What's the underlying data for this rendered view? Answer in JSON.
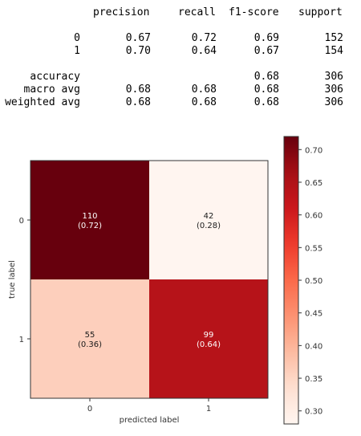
{
  "report": {
    "headers": [
      "precision",
      "recall",
      "f1-score",
      "support"
    ],
    "rows": [
      {
        "label": "0",
        "precision": "0.67",
        "recall": "0.72",
        "f1": "0.69",
        "support": "152"
      },
      {
        "label": "1",
        "precision": "0.70",
        "recall": "0.64",
        "f1": "0.67",
        "support": "154"
      },
      {
        "label": "accuracy",
        "precision": "",
        "recall": "",
        "f1": "0.68",
        "support": "306"
      },
      {
        "label": "macro avg",
        "precision": "0.68",
        "recall": "0.68",
        "f1": "0.68",
        "support": "306"
      },
      {
        "label": "weighted avg",
        "precision": "0.68",
        "recall": "0.68",
        "f1": "0.68",
        "support": "306"
      }
    ]
  },
  "chart_data": {
    "type": "heatmap",
    "xlabel": "predicted label",
    "ylabel": "true label",
    "x_categories": [
      "0",
      "1"
    ],
    "y_categories": [
      "0",
      "1"
    ],
    "cells": [
      {
        "row": 0,
        "col": 0,
        "count": "110",
        "ratio": "(0.72)",
        "value": 0.72
      },
      {
        "row": 0,
        "col": 1,
        "count": "42",
        "ratio": "(0.28)",
        "value": 0.28
      },
      {
        "row": 1,
        "col": 0,
        "count": "55",
        "ratio": "(0.36)",
        "value": 0.36
      },
      {
        "row": 1,
        "col": 1,
        "count": "99",
        "ratio": "(0.64)",
        "value": 0.64
      }
    ],
    "colorbar": {
      "min": 0.28,
      "max": 0.72,
      "ticks": [
        "0.30",
        "0.35",
        "0.40",
        "0.45",
        "0.50",
        "0.55",
        "0.60",
        "0.65",
        "0.70"
      ],
      "colormap": "Reds",
      "low_color": "#fff5f0",
      "high_color": "#67000d"
    }
  }
}
